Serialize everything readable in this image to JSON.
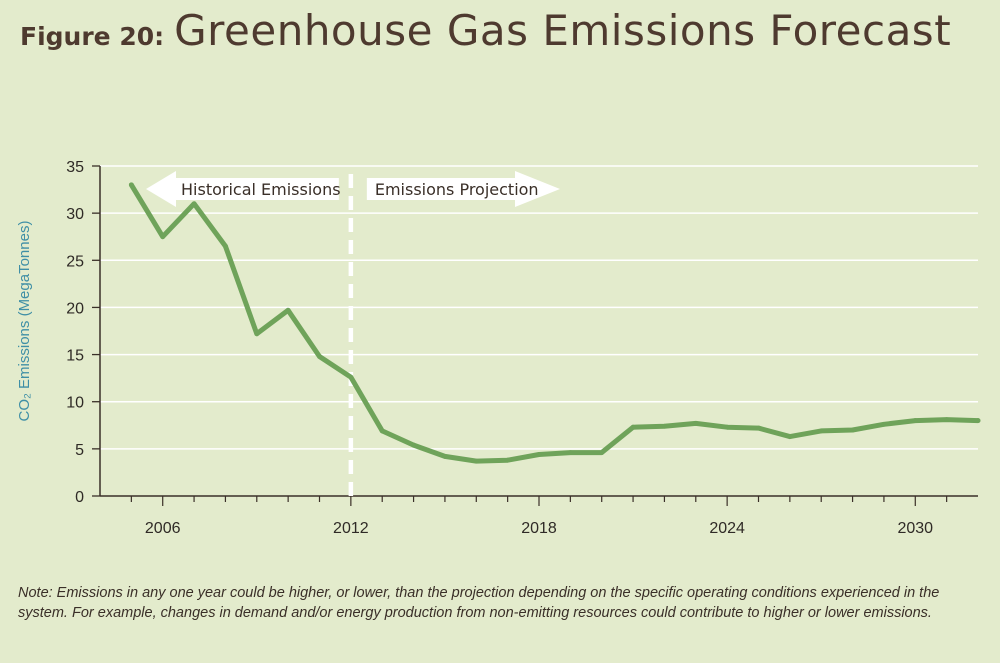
{
  "header": {
    "figure_label": "Figure 20:",
    "title": "Greenhouse Gas Emissions Forecast"
  },
  "note": "Note: Emissions in any one year could be higher, or lower, than the projection depending on the specific operating conditions experienced in the system. For example, changes in demand and/or energy production from non-emitting resources could contribute to higher or lower emissions.",
  "colors": {
    "background": "#e3ebcc",
    "line": "#6fa35a",
    "axis_label": "#3f8fa6",
    "text": "#4e3a2f",
    "grid": "#ffffff"
  },
  "chart_data": {
    "type": "line",
    "title": "Greenhouse Gas Emissions Forecast",
    "ylabel": "CO₂ Emissions (MegaTonnes)",
    "xlabel": "",
    "xlim": [
      2004,
      2032
    ],
    "ylim": [
      0,
      35
    ],
    "x_ticks": [
      2006,
      2012,
      2018,
      2024,
      2030
    ],
    "y_ticks": [
      0,
      5,
      10,
      15,
      20,
      25,
      30,
      35
    ],
    "grid": "horizontal",
    "series": [
      {
        "x": [
          2005,
          2006,
          2007,
          2008,
          2009,
          2010,
          2011,
          2012,
          2013,
          2014,
          2015,
          2016,
          2017,
          2018,
          2019,
          2020,
          2021,
          2022,
          2023,
          2024,
          2025,
          2026,
          2027,
          2028,
          2029,
          2030,
          2031,
          2032
        ],
        "values": [
          33.0,
          27.5,
          31.0,
          26.5,
          17.2,
          19.7,
          14.8,
          12.6,
          6.9,
          5.4,
          4.2,
          3.7,
          3.8,
          4.4,
          4.6,
          4.6,
          7.3,
          7.4,
          7.7,
          7.3,
          7.2,
          6.3,
          6.9,
          7.0,
          7.6,
          8.0,
          8.1,
          8.0
        ]
      }
    ],
    "divider_x": 2012,
    "annotations": [
      {
        "text": "Historical Emissions",
        "direction": "left"
      },
      {
        "text": "Emissions Projection",
        "direction": "right"
      }
    ]
  }
}
